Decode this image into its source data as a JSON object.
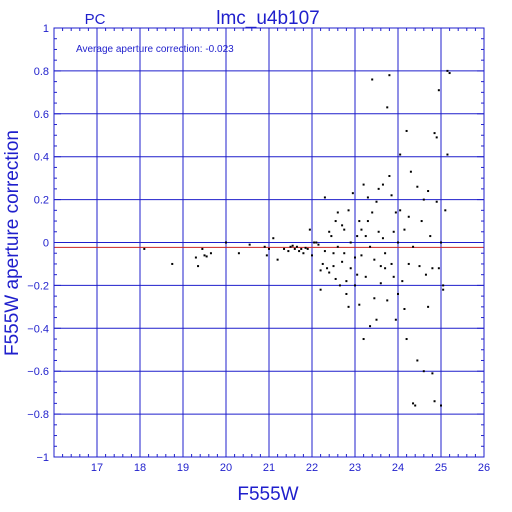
{
  "chart_data": {
    "type": "scatter",
    "title": "lmc_u4b107",
    "subtitle": "PC",
    "xlabel": "F555W",
    "ylabel": "F555W aperture correction",
    "annotation": "Average aperture correction: -0.023",
    "xlim": [
      16,
      26
    ],
    "ylim": [
      -1,
      1
    ],
    "xticks": [
      "17",
      "18",
      "19",
      "20",
      "21",
      "22",
      "23",
      "24",
      "25",
      "26"
    ],
    "yticks": [
      "−1",
      "−0.8",
      "−0.6",
      "−0.4",
      "−0.2",
      "0",
      "0.2",
      "0.4",
      "0.6",
      "0.8",
      "1"
    ],
    "xtick_values": [
      17,
      18,
      19,
      20,
      21,
      22,
      23,
      24,
      25,
      26
    ],
    "ytick_values": [
      -1,
      -0.8,
      -0.6,
      -0.4,
      -0.2,
      0,
      0.2,
      0.4,
      0.6,
      0.8,
      1
    ],
    "grid": true,
    "reference_lines": [
      {
        "y": -0.023,
        "color": "#cc2222"
      },
      {
        "y": 0.0,
        "color": "#1f1fcc"
      }
    ],
    "colors": {
      "axis": "#1f1fcc",
      "grid": "#1f1fcc",
      "points": "#000000",
      "average_line": "#cc2222"
    },
    "points": [
      [
        18.1,
        -0.03
      ],
      [
        18.75,
        -0.1
      ],
      [
        19.3,
        -0.07
      ],
      [
        19.35,
        -0.11
      ],
      [
        19.45,
        -0.03
      ],
      [
        19.5,
        -0.06
      ],
      [
        19.55,
        -0.065
      ],
      [
        19.65,
        -0.05
      ],
      [
        20.0,
        0.0
      ],
      [
        20.3,
        -0.05
      ],
      [
        20.55,
        -0.01
      ],
      [
        20.9,
        -0.02
      ],
      [
        20.95,
        -0.06
      ],
      [
        21.0,
        -0.03
      ],
      [
        21.1,
        0.02
      ],
      [
        21.2,
        -0.08
      ],
      [
        21.35,
        -0.03
      ],
      [
        21.45,
        -0.04
      ],
      [
        21.5,
        -0.02
      ],
      [
        21.55,
        -0.015
      ],
      [
        21.6,
        -0.03
      ],
      [
        21.65,
        -0.02
      ],
      [
        21.7,
        -0.04
      ],
      [
        21.75,
        -0.03
      ],
      [
        21.8,
        -0.05
      ],
      [
        21.85,
        -0.025
      ],
      [
        21.9,
        -0.03
      ],
      [
        21.95,
        0.06
      ],
      [
        22.0,
        -0.06
      ],
      [
        22.05,
        0.0
      ],
      [
        22.1,
        0.0
      ],
      [
        22.15,
        -0.01
      ],
      [
        22.2,
        -0.13
      ],
      [
        22.2,
        -0.22
      ],
      [
        22.25,
        -0.1
      ],
      [
        22.3,
        -0.04
      ],
      [
        22.3,
        0.21
      ],
      [
        22.35,
        -0.12
      ],
      [
        22.4,
        0.05
      ],
      [
        22.4,
        -0.14
      ],
      [
        22.45,
        0.03
      ],
      [
        22.5,
        -0.05
      ],
      [
        22.5,
        -0.11
      ],
      [
        22.55,
        0.1
      ],
      [
        22.55,
        -0.17
      ],
      [
        22.6,
        -0.02
      ],
      [
        22.6,
        0.14
      ],
      [
        22.65,
        -0.2
      ],
      [
        22.7,
        0.08
      ],
      [
        22.7,
        -0.09
      ],
      [
        22.75,
        -0.05
      ],
      [
        22.75,
        0.06
      ],
      [
        22.8,
        -0.18
      ],
      [
        22.8,
        -0.24
      ],
      [
        22.85,
        -0.3
      ],
      [
        22.85,
        0.15
      ],
      [
        22.9,
        -0.12
      ],
      [
        22.9,
        0.0
      ],
      [
        22.95,
        0.23
      ],
      [
        23.0,
        -0.07
      ],
      [
        23.0,
        -0.2
      ],
      [
        23.05,
        0.03
      ],
      [
        23.05,
        -0.15
      ],
      [
        23.1,
        -0.29
      ],
      [
        23.1,
        0.1
      ],
      [
        23.15,
        0.06
      ],
      [
        23.15,
        -0.06
      ],
      [
        23.2,
        -0.45
      ],
      [
        23.2,
        0.27
      ],
      [
        23.25,
        0.03
      ],
      [
        23.25,
        -0.16
      ],
      [
        23.3,
        0.1
      ],
      [
        23.3,
        0.21
      ],
      [
        23.35,
        -0.02
      ],
      [
        23.35,
        -0.39
      ],
      [
        23.4,
        0.76
      ],
      [
        23.4,
        0.14
      ],
      [
        23.45,
        -0.08
      ],
      [
        23.45,
        -0.26
      ],
      [
        23.5,
        -0.36
      ],
      [
        23.5,
        0.19
      ],
      [
        23.55,
        0.05
      ],
      [
        23.55,
        0.25
      ],
      [
        23.6,
        -0.11
      ],
      [
        23.6,
        -0.19
      ],
      [
        23.65,
        0.27
      ],
      [
        23.65,
        0.02
      ],
      [
        23.7,
        -0.05
      ],
      [
        23.7,
        -0.12
      ],
      [
        23.75,
        0.63
      ],
      [
        23.75,
        -0.27
      ],
      [
        23.8,
        0.78
      ],
      [
        23.8,
        0.31
      ],
      [
        23.85,
        0.22
      ],
      [
        23.85,
        -0.1
      ],
      [
        23.9,
        0.05
      ],
      [
        23.9,
        -0.16
      ],
      [
        23.95,
        0.14
      ],
      [
        23.95,
        -0.36
      ],
      [
        24.0,
        0.0
      ],
      [
        24.0,
        -0.24
      ],
      [
        24.05,
        0.41
      ],
      [
        24.05,
        0.15
      ],
      [
        24.1,
        -0.18
      ],
      [
        24.15,
        0.06
      ],
      [
        24.15,
        -0.31
      ],
      [
        24.2,
        0.52
      ],
      [
        24.2,
        -0.45
      ],
      [
        24.25,
        -0.1
      ],
      [
        24.25,
        0.12
      ],
      [
        24.3,
        0.33
      ],
      [
        24.35,
        -0.75
      ],
      [
        24.35,
        -0.02
      ],
      [
        24.4,
        -0.76
      ],
      [
        24.45,
        -0.55
      ],
      [
        24.45,
        0.26
      ],
      [
        24.5,
        -0.11
      ],
      [
        24.55,
        0.1
      ],
      [
        24.6,
        -0.6
      ],
      [
        24.6,
        0.2
      ],
      [
        24.65,
        -0.15
      ],
      [
        24.7,
        -0.3
      ],
      [
        24.7,
        0.24
      ],
      [
        24.75,
        0.03
      ],
      [
        24.8,
        -0.61
      ],
      [
        24.8,
        -0.12
      ],
      [
        24.85,
        0.51
      ],
      [
        24.85,
        -0.74
      ],
      [
        24.9,
        0.49
      ],
      [
        24.9,
        0.19
      ],
      [
        24.95,
        0.71
      ],
      [
        24.95,
        -0.12
      ],
      [
        25.0,
        0.0
      ],
      [
        25.0,
        -0.76
      ],
      [
        25.05,
        -0.2
      ],
      [
        25.1,
        0.15
      ],
      [
        25.15,
        0.41
      ],
      [
        25.15,
        0.8
      ],
      [
        25.2,
        0.79
      ],
      [
        25.05,
        -0.22
      ]
    ]
  }
}
